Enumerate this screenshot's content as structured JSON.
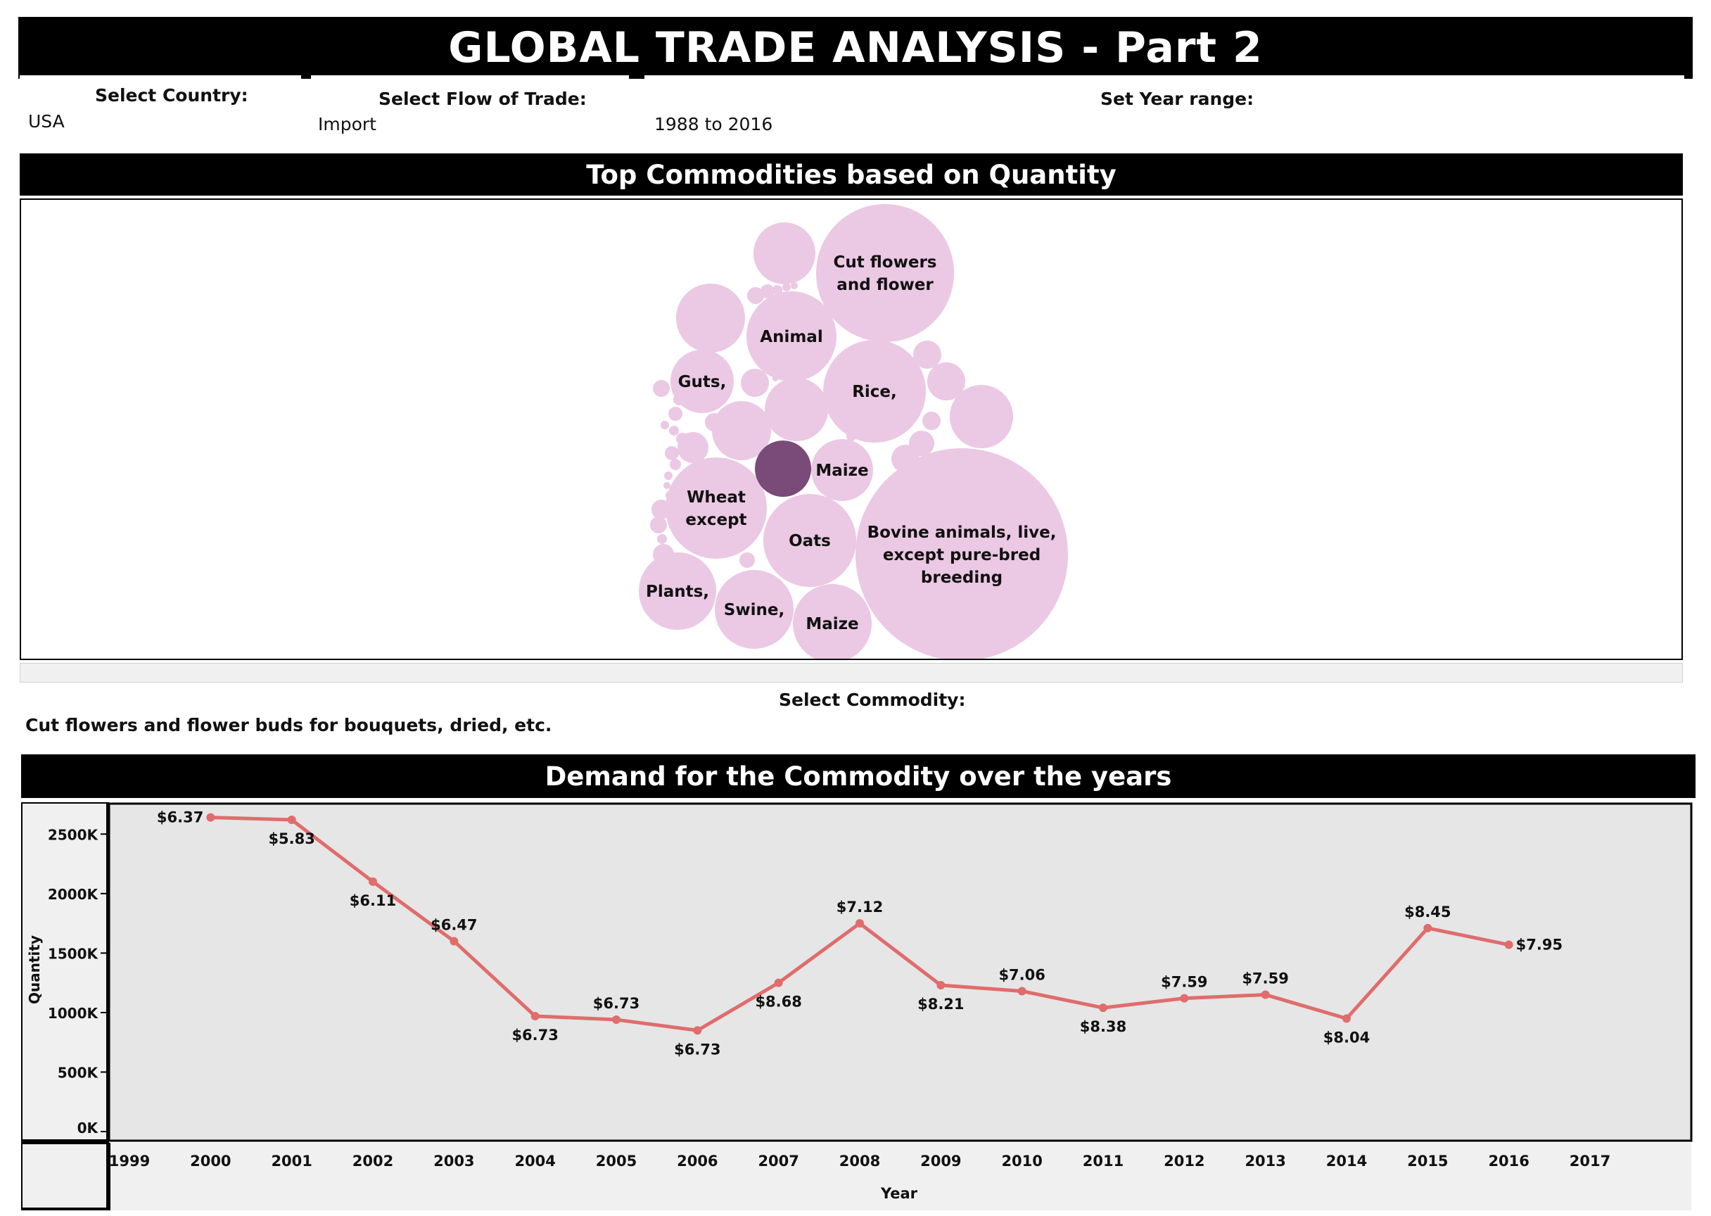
{
  "header": {
    "title": "GLOBAL TRADE ANALYSIS - Part 2"
  },
  "filters": {
    "country": {
      "label": "Select Country:",
      "value": "USA"
    },
    "flow": {
      "label": "Select Flow of Trade:",
      "value": "Import"
    },
    "year_range": {
      "label": "Set Year range:",
      "value": "1988 to 2016"
    }
  },
  "bubble_section": {
    "title": "Top Commodities based on Quantity",
    "labeled_bubbles": [
      {
        "label": "Cut flowers and flower",
        "lines": [
          "Cut flowers",
          "and flower"
        ]
      },
      {
        "label": "Animal",
        "lines": [
          "Animal"
        ]
      },
      {
        "label": "Guts,",
        "lines": [
          "Guts,"
        ]
      },
      {
        "label": "Rice,",
        "lines": [
          "Rice,"
        ]
      },
      {
        "label": "Maize",
        "lines": [
          "Maize"
        ]
      },
      {
        "label": "Wheat except",
        "lines": [
          "Wheat",
          "except"
        ]
      },
      {
        "label": "Oats",
        "lines": [
          "Oats"
        ]
      },
      {
        "label": "Bovine animals, live, except pure-bred breeding",
        "lines": [
          "Bovine animals, live,",
          "except pure-bred",
          "breeding"
        ]
      },
      {
        "label": "Plants,",
        "lines": [
          "Plants,"
        ]
      },
      {
        "label": "Swine,",
        "lines": [
          "Swine,"
        ]
      },
      {
        "label": "Maize",
        "lines": [
          "Maize"
        ]
      }
    ],
    "colors": {
      "bubble": "#ebc8e3",
      "selected": "#7a4a78"
    }
  },
  "commodity_filter": {
    "label": "Select Commodity:",
    "value": "Cut flowers and flower buds for bouquets, dried, etc."
  },
  "demand_section": {
    "title": "Demand for the Commodity over the years"
  },
  "chart_data": {
    "type": "line",
    "title": "Demand for the Commodity over the years",
    "xlabel": "Year",
    "ylabel": "Quantity",
    "x_ticks": [
      "1999",
      "2000",
      "2001",
      "2002",
      "2003",
      "2004",
      "2005",
      "2006",
      "2007",
      "2008",
      "2009",
      "2010",
      "2011",
      "2012",
      "2013",
      "2014",
      "2015",
      "2016",
      "2017"
    ],
    "xlim": [
      1999,
      2017
    ],
    "y_ticks": [
      "0K",
      "500K",
      "1000K",
      "1500K",
      "2000K",
      "2500K"
    ],
    "ylim": [
      0,
      2750
    ],
    "y_unit": "K",
    "grid": false,
    "series": [
      {
        "x": [
          2000,
          2001,
          2002,
          2003,
          2004,
          2005,
          2006,
          2007,
          2008,
          2009,
          2010,
          2011,
          2012,
          2013,
          2014,
          2015,
          2016
        ],
        "values": [
          2640,
          2620,
          2100,
          1600,
          970,
          940,
          850,
          1250,
          1750,
          1230,
          1180,
          1040,
          1120,
          1150,
          950,
          1710,
          1570
        ],
        "data_labels": [
          "$6.37",
          "$5.83",
          "$6.11",
          "$6.47",
          "$6.73",
          "$6.73",
          "$6.73",
          "$8.68",
          "$7.12",
          "$8.21",
          "$7.06",
          "$8.38",
          "$7.59",
          "$7.59",
          "$8.04",
          "$8.45",
          "$7.95"
        ],
        "label_positions": [
          "left",
          "below",
          "below",
          "above",
          "below",
          "above",
          "below",
          "below",
          "above",
          "below",
          "above",
          "below",
          "above",
          "above",
          "below",
          "above",
          "right"
        ]
      }
    ],
    "colors": {
      "line": "#e06c6c",
      "plot_bg": "#e6e6e6",
      "axis_bg": "#f0f0f0"
    }
  }
}
